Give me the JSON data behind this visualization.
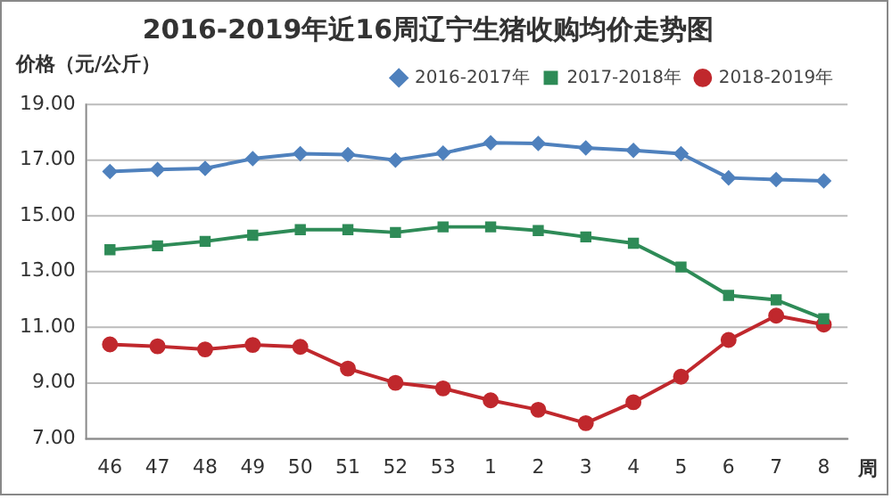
{
  "chart_data": {
    "type": "line",
    "title": "2016-2019年近16周辽宁生猪收购均价走势图",
    "ylabel": "价格（元/公斤）",
    "xlabel": "周",
    "categories": [
      "46",
      "47",
      "48",
      "49",
      "50",
      "51",
      "52",
      "53",
      "1",
      "2",
      "3",
      "4",
      "5",
      "6",
      "7",
      "8"
    ],
    "series": [
      {
        "name": "2016-2017年",
        "color": "#4f81bd",
        "marker": "diamond",
        "values": [
          16.59,
          16.66,
          16.7,
          17.05,
          17.23,
          17.2,
          17.0,
          17.25,
          17.62,
          17.6,
          17.44,
          17.35,
          17.23,
          16.36,
          16.3,
          16.25
        ]
      },
      {
        "name": "2017-2018年",
        "color": "#2e8b57",
        "marker": "square",
        "values": [
          13.78,
          13.92,
          14.08,
          14.3,
          14.5,
          14.5,
          14.4,
          14.6,
          14.6,
          14.47,
          14.24,
          14.01,
          13.16,
          12.14,
          11.98,
          11.3
        ]
      },
      {
        "name": "2018-2019年",
        "color": "#c0282d",
        "marker": "circle",
        "values": [
          10.38,
          10.31,
          10.2,
          10.36,
          10.29,
          9.51,
          9.0,
          8.8,
          8.37,
          8.03,
          7.55,
          8.3,
          9.22,
          10.54,
          11.41,
          11.09
        ]
      }
    ],
    "ylim": [
      7,
      19
    ],
    "yticks": [
      {
        "value": 7,
        "label": "7.00"
      },
      {
        "value": 9,
        "label": "9.00"
      },
      {
        "value": 11,
        "label": "11.00"
      },
      {
        "value": 13,
        "label": "13.00"
      },
      {
        "value": 15,
        "label": "15.00"
      },
      {
        "value": 17,
        "label": "17.00"
      },
      {
        "value": 19,
        "label": "19.00"
      }
    ],
    "grid": "y",
    "legend": "top right",
    "line_style": "solid"
  }
}
